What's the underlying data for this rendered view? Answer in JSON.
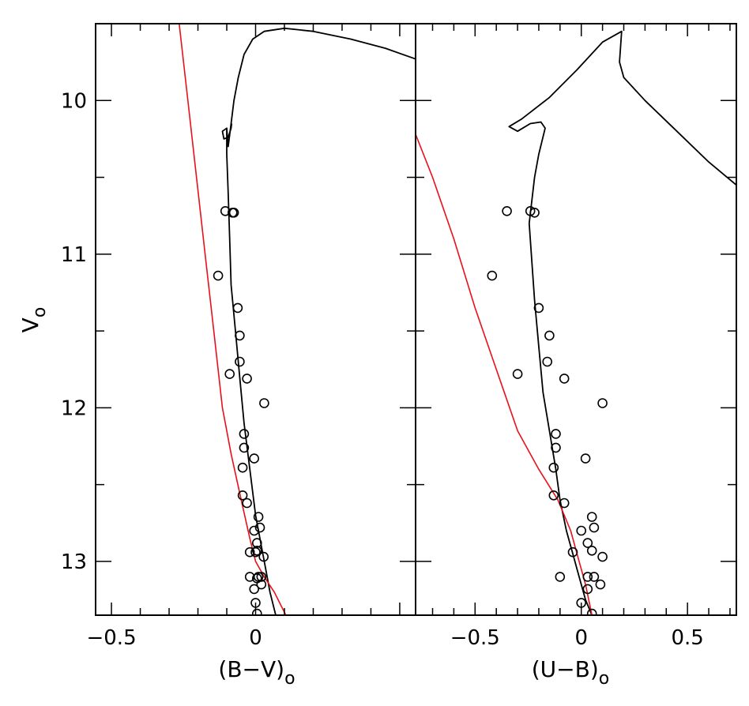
{
  "chart_data": [
    {
      "type": "scatter",
      "xlabel": "(B−V)",
      "xlabel_subscript": "o",
      "ylabel": "V",
      "ylabel_subscript": "o",
      "xlim": [
        -0.555,
        0.555
      ],
      "ylim": [
        13.35,
        9.5
      ],
      "y_inverted": true,
      "x_ticks": [
        -0.5,
        0
      ],
      "x_tick_labels": [
        "−0.5",
        "0"
      ],
      "y_ticks": [
        10,
        11,
        12,
        13
      ],
      "y_tick_labels": [
        "10",
        "11",
        "12",
        "13"
      ],
      "grid": false,
      "colors": {
        "isochrone": "#000000",
        "zams": "#e8101a",
        "stars": "#000000"
      },
      "series": [
        {
          "kind": "line",
          "color": "#000000",
          "x": [
            0.07,
            0.05,
            0.035,
            0.02,
            0.0,
            -0.02,
            -0.04,
            -0.055,
            -0.07,
            -0.085,
            -0.09,
            -0.095,
            -0.1,
            -0.1,
            -0.095,
            -0.085,
            -0.075,
            -0.06,
            -0.04,
            -0.01,
            0.03,
            0.1,
            0.2,
            0.33,
            0.45,
            0.555
          ],
          "y": [
            13.35,
            13.2,
            13.05,
            12.9,
            12.7,
            12.4,
            12.1,
            11.8,
            11.5,
            11.2,
            10.9,
            10.6,
            10.35,
            10.18,
            10.3,
            10.15,
            10.0,
            9.85,
            9.7,
            9.6,
            9.55,
            9.53,
            9.55,
            9.6,
            9.66,
            9.73
          ]
        },
        {
          "kind": "line",
          "color": "#000000",
          "x": [
            -0.1,
            -0.115,
            -0.11,
            -0.095,
            -0.085,
            -0.083
          ],
          "y": [
            10.18,
            10.2,
            10.25,
            10.24,
            10.18,
            10.15
          ]
        },
        {
          "kind": "line",
          "color": "#e8101a",
          "x": [
            -0.265,
            -0.235,
            -0.205,
            -0.175,
            -0.145,
            -0.115,
            -0.085,
            -0.05,
            -0.02,
            0.0,
            0.03,
            0.065,
            0.105
          ],
          "y": [
            9.5,
            10.0,
            10.5,
            11.0,
            11.5,
            12.0,
            12.3,
            12.6,
            12.85,
            13.0,
            13.1,
            13.2,
            13.35
          ]
        },
        {
          "kind": "scatter",
          "color": "#000000",
          "x": [
            -0.105,
            -0.08,
            -0.075,
            -0.13,
            -0.062,
            -0.055,
            -0.055,
            -0.09,
            -0.03,
            0.03,
            -0.04,
            -0.04,
            -0.005,
            -0.045,
            -0.045,
            -0.03,
            0.01,
            0.015,
            -0.005,
            0.005,
            0.0,
            0.005,
            -0.02,
            0.028,
            -0.02,
            0.01,
            0.02,
            0.02,
            0.005,
            -0.005,
            0.0,
            0.005
          ],
          "y": [
            10.72,
            10.73,
            10.73,
            11.14,
            11.35,
            11.53,
            11.7,
            11.78,
            11.81,
            11.97,
            12.17,
            12.26,
            12.33,
            12.39,
            12.57,
            12.62,
            12.71,
            12.78,
            12.8,
            12.88,
            12.94,
            12.93,
            12.94,
            12.97,
            13.1,
            13.1,
            13.1,
            13.15,
            13.11,
            13.18,
            13.27,
            13.34
          ]
        }
      ]
    },
    {
      "type": "scatter",
      "xlabel": "(U−B)",
      "xlabel_subscript": "o",
      "ylabel": "",
      "xlim": [
        -0.78,
        0.73
      ],
      "ylim": [
        13.35,
        9.5
      ],
      "y_inverted": true,
      "x_ticks": [
        -0.5,
        0,
        0.5
      ],
      "x_tick_labels": [
        "−0.5",
        "0",
        "0.5"
      ],
      "y_ticks": [
        10,
        11,
        12,
        13
      ],
      "grid": false,
      "colors": {
        "isochrone": "#000000",
        "zams": "#e8101a",
        "stars": "#000000"
      },
      "series": [
        {
          "kind": "line",
          "color": "#000000",
          "x": [
            0.05,
            0.02,
            -0.01,
            -0.04,
            -0.07,
            -0.1,
            -0.12,
            -0.15,
            -0.18,
            -0.2,
            -0.22,
            -0.235,
            -0.245,
            -0.22,
            -0.2,
            -0.17,
            -0.19,
            -0.24,
            -0.3,
            -0.34,
            -0.28,
            -0.15,
            -0.02,
            0.1,
            0.19,
            0.18,
            0.2,
            0.3,
            0.45,
            0.6,
            0.73
          ],
          "y": [
            13.35,
            13.25,
            13.1,
            12.95,
            12.8,
            12.6,
            12.4,
            12.15,
            11.9,
            11.6,
            11.3,
            11.0,
            10.8,
            10.5,
            10.35,
            10.18,
            10.14,
            10.15,
            10.2,
            10.17,
            10.12,
            9.98,
            9.8,
            9.62,
            9.55,
            9.75,
            9.85,
            10.0,
            10.2,
            10.4,
            10.55
          ]
        },
        {
          "kind": "line",
          "color": "#e8101a",
          "x": [
            -0.78,
            -0.7,
            -0.6,
            -0.5,
            -0.4,
            -0.3,
            -0.2,
            -0.11,
            -0.08,
            -0.05,
            -0.02,
            0.02,
            0.05
          ],
          "y": [
            10.22,
            10.5,
            10.9,
            11.35,
            11.75,
            12.15,
            12.4,
            12.6,
            12.7,
            12.8,
            12.95,
            13.15,
            13.35
          ]
        },
        {
          "kind": "scatter",
          "color": "#000000",
          "x": [
            -0.35,
            -0.24,
            -0.22,
            -0.42,
            -0.2,
            -0.15,
            -0.16,
            -0.3,
            -0.08,
            0.1,
            -0.12,
            -0.12,
            0.02,
            -0.13,
            -0.13,
            -0.08,
            0.05,
            0.06,
            0.0,
            0.03,
            0.05,
            -0.04,
            0.1,
            -0.1,
            0.03,
            0.06,
            0.09,
            0.03,
            0.0,
            0.05
          ],
          "y": [
            10.72,
            10.72,
            10.73,
            11.14,
            11.35,
            11.53,
            11.7,
            11.78,
            11.81,
            11.97,
            12.17,
            12.26,
            12.33,
            12.39,
            12.57,
            12.62,
            12.71,
            12.78,
            12.8,
            12.88,
            12.93,
            12.94,
            12.97,
            13.1,
            13.1,
            13.1,
            13.15,
            13.18,
            13.27,
            13.34
          ]
        }
      ]
    }
  ]
}
